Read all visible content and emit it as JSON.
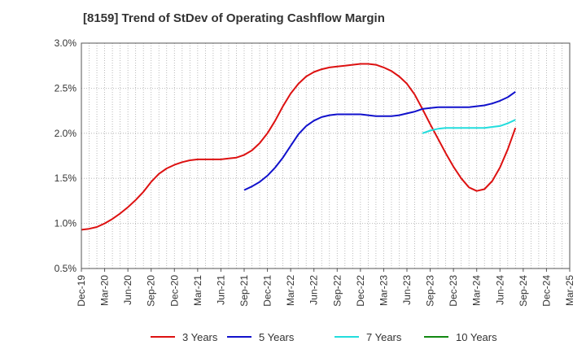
{
  "chart_data": {
    "type": "line",
    "title": "[8159]  Trend of StDev of Operating Cashflow Margin",
    "xlabel": "",
    "ylabel": "",
    "ylim": [
      0.5,
      3.0
    ],
    "y_ticks": [
      "0.5%",
      "1.0%",
      "1.5%",
      "2.0%",
      "2.5%",
      "3.0%"
    ],
    "x_ticks": [
      "Dec-19",
      "Mar-20",
      "Jun-20",
      "Sep-20",
      "Dec-20",
      "Mar-21",
      "Jun-21",
      "Sep-21",
      "Dec-21",
      "Mar-22",
      "Jun-22",
      "Sep-22",
      "Dec-22",
      "Mar-23",
      "Jun-23",
      "Sep-23",
      "Dec-23",
      "Mar-24",
      "Jun-24",
      "Sep-24",
      "Dec-24",
      "Mar-25"
    ],
    "grid": true,
    "legend_position": "bottom",
    "series": [
      {
        "name": "3 Years",
        "color": "#dd1111",
        "points": [
          [
            "Dec-19",
            0.93
          ],
          [
            "Jan-20",
            0.94
          ],
          [
            "Feb-20",
            0.96
          ],
          [
            "Mar-20",
            1.0
          ],
          [
            "Apr-20",
            1.05
          ],
          [
            "May-20",
            1.11
          ],
          [
            "Jun-20",
            1.18
          ],
          [
            "Jul-20",
            1.26
          ],
          [
            "Aug-20",
            1.35
          ],
          [
            "Sep-20",
            1.46
          ],
          [
            "Oct-20",
            1.55
          ],
          [
            "Nov-20",
            1.61
          ],
          [
            "Dec-20",
            1.65
          ],
          [
            "Jan-21",
            1.68
          ],
          [
            "Feb-21",
            1.7
          ],
          [
            "Mar-21",
            1.71
          ],
          [
            "Apr-21",
            1.71
          ],
          [
            "May-21",
            1.71
          ],
          [
            "Jun-21",
            1.71
          ],
          [
            "Jul-21",
            1.72
          ],
          [
            "Aug-21",
            1.73
          ],
          [
            "Sep-21",
            1.76
          ],
          [
            "Oct-21",
            1.81
          ],
          [
            "Nov-21",
            1.89
          ],
          [
            "Dec-21",
            2.0
          ],
          [
            "Jan-22",
            2.14
          ],
          [
            "Feb-22",
            2.3
          ],
          [
            "Mar-22",
            2.44
          ],
          [
            "Apr-22",
            2.55
          ],
          [
            "May-22",
            2.63
          ],
          [
            "Jun-22",
            2.68
          ],
          [
            "Jul-22",
            2.71
          ],
          [
            "Aug-22",
            2.73
          ],
          [
            "Sep-22",
            2.74
          ],
          [
            "Oct-22",
            2.75
          ],
          [
            "Nov-22",
            2.76
          ],
          [
            "Dec-22",
            2.77
          ],
          [
            "Jan-23",
            2.77
          ],
          [
            "Feb-23",
            2.76
          ],
          [
            "Mar-23",
            2.73
          ],
          [
            "Apr-23",
            2.69
          ],
          [
            "May-23",
            2.63
          ],
          [
            "Jun-23",
            2.55
          ],
          [
            "Jul-23",
            2.43
          ],
          [
            "Aug-23",
            2.27
          ],
          [
            "Sep-23",
            2.1
          ],
          [
            "Oct-23",
            1.94
          ],
          [
            "Nov-23",
            1.78
          ],
          [
            "Dec-23",
            1.63
          ],
          [
            "Jan-24",
            1.5
          ],
          [
            "Feb-24",
            1.4
          ],
          [
            "Mar-24",
            1.36
          ],
          [
            "Apr-24",
            1.38
          ],
          [
            "May-24",
            1.47
          ],
          [
            "Jun-24",
            1.62
          ],
          [
            "Jul-24",
            1.82
          ],
          [
            "Aug-24",
            2.06
          ]
        ]
      },
      {
        "name": "5 Years",
        "color": "#1111cc",
        "points": [
          [
            "Sep-21",
            1.37
          ],
          [
            "Oct-21",
            1.41
          ],
          [
            "Nov-21",
            1.46
          ],
          [
            "Dec-21",
            1.53
          ],
          [
            "Jan-22",
            1.62
          ],
          [
            "Feb-22",
            1.73
          ],
          [
            "Mar-22",
            1.86
          ],
          [
            "Apr-22",
            1.99
          ],
          [
            "May-22",
            2.08
          ],
          [
            "Jun-22",
            2.14
          ],
          [
            "Jul-22",
            2.18
          ],
          [
            "Aug-22",
            2.2
          ],
          [
            "Sep-22",
            2.21
          ],
          [
            "Oct-22",
            2.21
          ],
          [
            "Nov-22",
            2.21
          ],
          [
            "Dec-22",
            2.21
          ],
          [
            "Jan-23",
            2.2
          ],
          [
            "Feb-23",
            2.19
          ],
          [
            "Mar-23",
            2.19
          ],
          [
            "Apr-23",
            2.19
          ],
          [
            "May-23",
            2.2
          ],
          [
            "Jun-23",
            2.22
          ],
          [
            "Jul-23",
            2.24
          ],
          [
            "Aug-23",
            2.27
          ],
          [
            "Sep-23",
            2.28
          ],
          [
            "Oct-23",
            2.29
          ],
          [
            "Nov-23",
            2.29
          ],
          [
            "Dec-23",
            2.29
          ],
          [
            "Jan-24",
            2.29
          ],
          [
            "Feb-24",
            2.29
          ],
          [
            "Mar-24",
            2.3
          ],
          [
            "Apr-24",
            2.31
          ],
          [
            "May-24",
            2.33
          ],
          [
            "Jun-24",
            2.36
          ],
          [
            "Jul-24",
            2.4
          ],
          [
            "Aug-24",
            2.46
          ]
        ]
      },
      {
        "name": "7 Years",
        "color": "#22dddd",
        "points": [
          [
            "Aug-23",
            2.0
          ],
          [
            "Sep-23",
            2.03
          ],
          [
            "Oct-23",
            2.05
          ],
          [
            "Nov-23",
            2.06
          ],
          [
            "Dec-23",
            2.06
          ],
          [
            "Jan-24",
            2.06
          ],
          [
            "Feb-24",
            2.06
          ],
          [
            "Mar-24",
            2.06
          ],
          [
            "Apr-24",
            2.06
          ],
          [
            "May-24",
            2.07
          ],
          [
            "Jun-24",
            2.08
          ],
          [
            "Jul-24",
            2.11
          ],
          [
            "Aug-24",
            2.15
          ]
        ]
      },
      {
        "name": "10 Years",
        "color": "#118811",
        "points": []
      }
    ]
  }
}
